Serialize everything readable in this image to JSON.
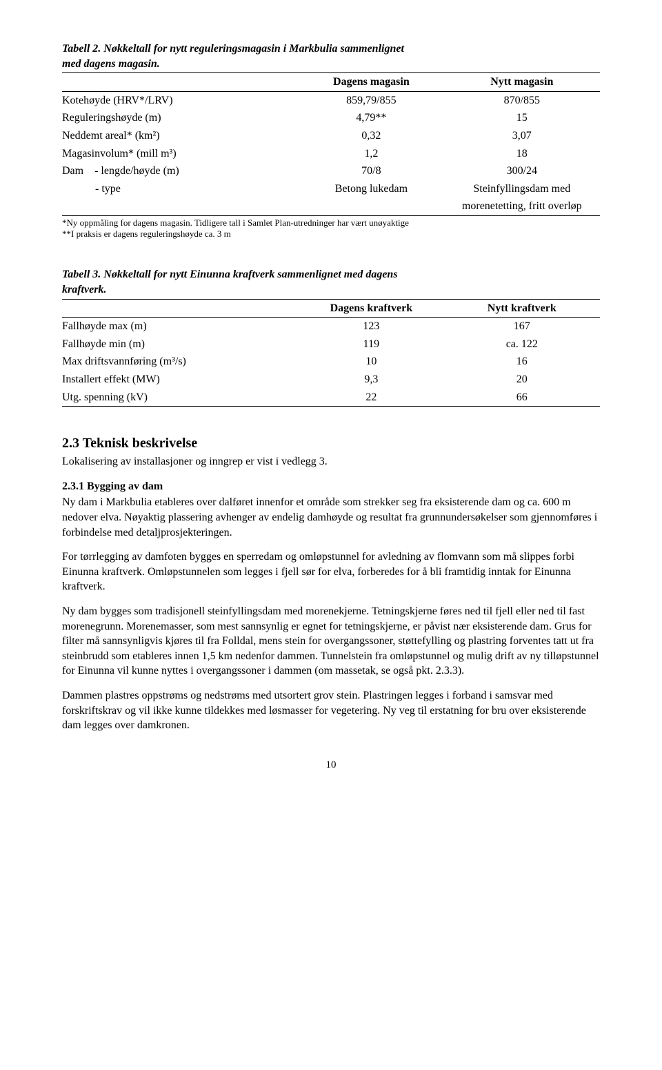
{
  "table2": {
    "caption_line1": "Tabell 2. Nøkkeltall for nytt reguleringsmagasin i Markbulia sammenlignet",
    "caption_line2": "med dagens magasin.",
    "head_c2": "Dagens magasin",
    "head_c3": "Nytt magasin",
    "rows": [
      {
        "label": "Kotehøyde (HRV*/LRV)",
        "c2": "859,79/855",
        "c3": "870/855"
      },
      {
        "label": "Reguleringshøyde (m)",
        "c2": "4,79**",
        "c3": "15"
      },
      {
        "label": "Neddemt areal* (km²)",
        "c2": "0,32",
        "c3": "3,07"
      },
      {
        "label": "Magasinvolum* (mill m³)",
        "c2": "1,2",
        "c3": "18"
      },
      {
        "label": "Dam    - lengde/høyde (m)",
        "c2": "70/8",
        "c3": "300/24"
      }
    ],
    "typerow": {
      "label": "            - type",
      "c2": "Betong lukedam",
      "c3a": "Steinfyllingsdam med",
      "c3b": "morenetetting, fritt overløp"
    },
    "foot1": "*Ny oppmåling for dagens magasin. Tidligere tall i Samlet Plan-utredninger har vært unøyaktige",
    "foot2": "**I praksis er dagens reguleringshøyde ca. 3 m"
  },
  "table3": {
    "caption_line1": "Tabell 3. Nøkkeltall for nytt Einunna kraftverk sammenlignet med dagens",
    "caption_line2": "kraftverk.",
    "head_c2": "Dagens kraftverk",
    "head_c3": "Nytt kraftverk",
    "rows": [
      {
        "label": "Fallhøyde max (m)",
        "c2": "123",
        "c3": "167"
      },
      {
        "label": "Fallhøyde min (m)",
        "c2": "119",
        "c3": "ca. 122"
      },
      {
        "label": "Max driftsvannføring (m³/s)",
        "c2": "10",
        "c3": "16"
      },
      {
        "label": "Installert effekt (MW)",
        "c2": "9,3",
        "c3": "20"
      },
      {
        "label": "Utg. spenning (kV)",
        "c2": "22",
        "c3": "66"
      }
    ]
  },
  "section": {
    "heading": "2.3 Teknisk beskrivelse",
    "intro": "Lokalisering av installasjoner og inngrep er vist i vedlegg 3.",
    "sub": "2.3.1 Bygging av dam",
    "p1": "Ny dam i Markbulia etableres over dalføret innenfor et område som strekker seg fra eksisterende dam og ca. 600 m nedover elva. Nøyaktig plassering avhenger av endelig damhøyde og resultat fra grunnundersøkelser som gjennomføres i forbindelse med detaljprosjekteringen.",
    "p2": "For tørrlegging av damfoten bygges en sperredam og omløpstunnel for avledning av flomvann som må slippes forbi Einunna kraftverk. Omløpstunnelen som legges i fjell sør for elva, forberedes for å bli framtidig inntak for Einunna kraftverk.",
    "p3": "Ny dam bygges som tradisjonell steinfyllingsdam med morenekjerne. Tetningskjerne føres ned til fjell eller ned til fast morenegrunn. Morenemasser, som mest sannsynlig er egnet for tetningskjerne, er påvist nær eksisterende dam. Grus for filter må sannsynligvis kjøres til fra Folldal, mens stein for overgangssoner, støttefylling og plastring forventes tatt ut fra steinbrudd som etableres innen 1,5 km nedenfor dammen. Tunnelstein fra omløpstunnel og mulig drift av ny tilløpstunnel for Einunna vil kunne nyttes i overgangssoner i dammen (om massetak, se også pkt. 2.3.3).",
    "p4": "Dammen plastres oppstrøms og nedstrøms med utsortert grov stein. Plastringen legges i forband i samsvar med forskriftskrav og vil ikke kunne tildekkes med løsmasser for vegetering. Ny veg til erstatning for bru over eksisterende dam legges over damkronen."
  },
  "pagenum": "10"
}
